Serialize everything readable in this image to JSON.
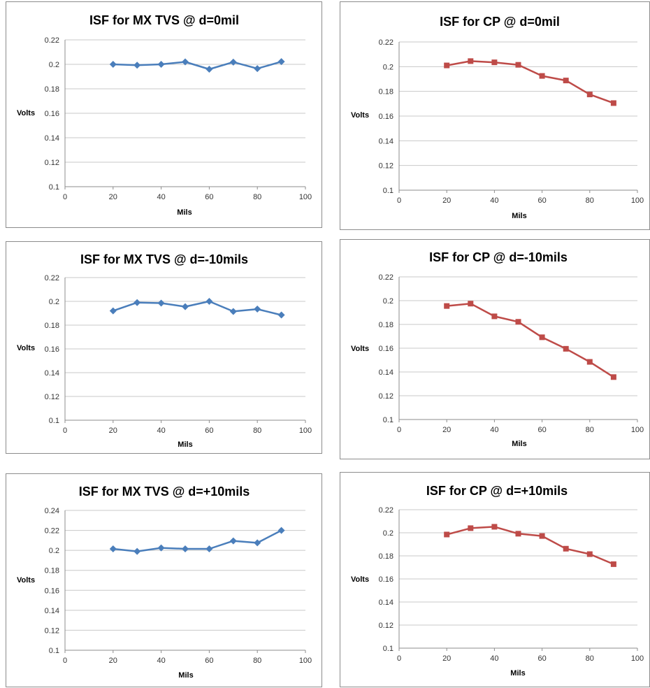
{
  "chart_data": [
    {
      "type": "line",
      "title": "ISF for MX TVS @ d=0mil",
      "xlabel": "Mils",
      "ylabel": "Volts",
      "xlim": [
        0,
        100
      ],
      "xticks": [
        "0",
        "20",
        "40",
        "60",
        "80",
        "100"
      ],
      "ylim": [
        0.1,
        0.22
      ],
      "yticks": [
        "0.1",
        "0.12",
        "0.14",
        "0.16",
        "0.18",
        "0.2",
        "0.22"
      ],
      "grid": "horizontal",
      "color": "#4a7ebb",
      "marker": "diamond",
      "x": [
        20,
        30,
        40,
        50,
        60,
        70,
        80,
        90
      ],
      "values": [
        0.2,
        0.1993,
        0.2,
        0.202,
        0.196,
        0.2018,
        0.1965,
        0.2022
      ]
    },
    {
      "type": "line",
      "title": "ISF for CP @ d=0mil",
      "xlabel": "Mils",
      "ylabel": "Volts",
      "xlim": [
        0,
        100
      ],
      "xticks": [
        "0",
        "20",
        "40",
        "60",
        "80",
        "100"
      ],
      "ylim": [
        0.1,
        0.22
      ],
      "yticks": [
        "0.1",
        "0.12",
        "0.14",
        "0.16",
        "0.18",
        "0.2",
        "0.22"
      ],
      "grid": "horizontal",
      "color": "#be4b48",
      "marker": "square",
      "x": [
        20,
        30,
        40,
        50,
        60,
        70,
        80,
        90
      ],
      "values": [
        0.201,
        0.2045,
        0.2035,
        0.2015,
        0.1925,
        0.1888,
        0.1775,
        0.1705
      ]
    },
    {
      "type": "line",
      "title": "ISF for MX TVS @ d=-10mils",
      "xlabel": "Mils",
      "ylabel": "Volts",
      "xlim": [
        0,
        100
      ],
      "xticks": [
        "0",
        "20",
        "40",
        "60",
        "80",
        "100"
      ],
      "ylim": [
        0.1,
        0.22
      ],
      "yticks": [
        "0.1",
        "0.12",
        "0.14",
        "0.16",
        "0.18",
        "0.2",
        "0.22"
      ],
      "grid": "horizontal",
      "color": "#4a7ebb",
      "marker": "diamond",
      "x": [
        20,
        30,
        40,
        50,
        60,
        70,
        80,
        90
      ],
      "values": [
        0.192,
        0.199,
        0.1985,
        0.1955,
        0.2,
        0.1915,
        0.1935,
        0.1885
      ]
    },
    {
      "type": "line",
      "title": "ISF for CP @ d=-10mils",
      "xlabel": "Mils",
      "ylabel": "Volts",
      "xlim": [
        0,
        100
      ],
      "xticks": [
        "0",
        "20",
        "40",
        "60",
        "80",
        "100"
      ],
      "ylim": [
        0.1,
        0.22
      ],
      "yticks": [
        "0.1",
        "0.12",
        "0.14",
        "0.16",
        "0.18",
        "0.2",
        "0.22"
      ],
      "grid": "horizontal",
      "color": "#be4b48",
      "marker": "square",
      "x": [
        20,
        30,
        40,
        50,
        60,
        70,
        80,
        90
      ],
      "values": [
        0.1955,
        0.1975,
        0.1868,
        0.1822,
        0.1692,
        0.1595,
        0.1485,
        0.1357
      ]
    },
    {
      "type": "line",
      "title": "ISF for MX TVS @ d=+10mils",
      "xlabel": "Mils",
      "ylabel": "Volts",
      "xlim": [
        0,
        100
      ],
      "xticks": [
        "0",
        "20",
        "40",
        "60",
        "80",
        "100"
      ],
      "ylim": [
        0.1,
        0.24
      ],
      "yticks": [
        "0.1",
        "0.12",
        "0.14",
        "0.16",
        "0.18",
        "0.2",
        "0.22",
        "0.24"
      ],
      "grid": "horizontal",
      "color": "#4a7ebb",
      "marker": "diamond",
      "x": [
        20,
        30,
        40,
        50,
        60,
        70,
        80,
        90
      ],
      "values": [
        0.2015,
        0.199,
        0.2025,
        0.2015,
        0.2015,
        0.2095,
        0.2075,
        0.22
      ]
    },
    {
      "type": "line",
      "title": "ISF for CP @ d=+10mils",
      "xlabel": "Mils",
      "ylabel": "Volts",
      "xlim": [
        0,
        100
      ],
      "xticks": [
        "0",
        "20",
        "40",
        "60",
        "80",
        "100"
      ],
      "ylim": [
        0.1,
        0.22
      ],
      "yticks": [
        "0.1",
        "0.12",
        "0.14",
        "0.16",
        "0.18",
        "0.2",
        "0.22"
      ],
      "grid": "horizontal",
      "color": "#be4b48",
      "marker": "square",
      "x": [
        20,
        30,
        40,
        50,
        60,
        70,
        80,
        90
      ],
      "values": [
        0.1985,
        0.204,
        0.2052,
        0.1992,
        0.1972,
        0.1862,
        0.1815,
        0.1728
      ]
    }
  ]
}
